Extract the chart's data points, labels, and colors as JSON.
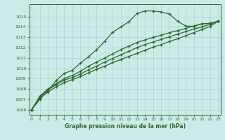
{
  "bg_color": "#cceae8",
  "grid_color": "#aad4d2",
  "line_color": "#2d6a2d",
  "marker": "+",
  "title": "Graphe pression niveau de la mer (hPa)",
  "xlim": [
    -0.3,
    23.3
  ],
  "ylim": [
    1005.5,
    1016.2
  ],
  "yticks": [
    1006,
    1007,
    1008,
    1009,
    1010,
    1011,
    1012,
    1013,
    1014,
    1015
  ],
  "xticks": [
    0,
    1,
    2,
    3,
    4,
    5,
    6,
    7,
    8,
    9,
    10,
    11,
    12,
    13,
    14,
    15,
    16,
    17,
    18,
    19,
    20,
    21,
    22,
    23
  ],
  "series": [
    [
      1006.0,
      1007.0,
      1007.8,
      1008.8,
      1009.5,
      1009.8,
      1010.5,
      1011.1,
      1011.8,
      1012.6,
      1013.5,
      1014.0,
      1014.5,
      1015.3,
      1015.55,
      1015.55,
      1015.45,
      1015.25,
      1014.55,
      1014.1,
      1014.05,
      1014.3,
      1014.35,
      1014.55
    ],
    [
      1006.0,
      1007.3,
      1008.0,
      1008.5,
      1009.0,
      1009.3,
      1009.7,
      1010.2,
      1010.6,
      1011.0,
      1011.4,
      1011.8,
      1012.15,
      1012.5,
      1012.75,
      1013.0,
      1013.2,
      1013.45,
      1013.65,
      1013.85,
      1014.1,
      1014.3,
      1014.35,
      1014.55
    ],
    [
      1006.0,
      1007.2,
      1007.9,
      1008.4,
      1008.85,
      1009.1,
      1009.45,
      1009.85,
      1010.2,
      1010.6,
      1010.95,
      1011.3,
      1011.65,
      1012.0,
      1012.3,
      1012.55,
      1012.8,
      1013.05,
      1013.3,
      1013.55,
      1013.8,
      1014.0,
      1014.25,
      1014.55
    ],
    [
      1006.0,
      1007.1,
      1007.7,
      1008.2,
      1008.6,
      1008.9,
      1009.2,
      1009.55,
      1009.9,
      1010.2,
      1010.55,
      1010.85,
      1011.15,
      1011.45,
      1011.75,
      1012.05,
      1012.3,
      1012.6,
      1012.85,
      1013.15,
      1013.45,
      1013.75,
      1014.05,
      1014.55
    ]
  ]
}
